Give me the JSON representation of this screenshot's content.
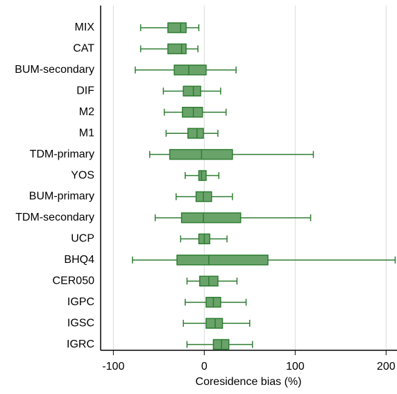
{
  "chart_data": {
    "type": "boxplot",
    "x_label": "Coresidence bias (%)",
    "categories": [
      "MIX",
      "CAT",
      "BUM-secondary",
      "DIF",
      "M2",
      "M1",
      "TDM-primary",
      "YOS",
      "BUM-primary",
      "TDM-secondary",
      "UCP",
      "BHQ4",
      "CER050",
      "IGPC",
      "IGSC",
      "IGRC"
    ],
    "min": [
      -70,
      -70,
      -76,
      -45,
      -44,
      -42,
      -60,
      -21,
      -31,
      -54,
      -26,
      -79,
      -19,
      -21,
      -23,
      -19
    ],
    "q1": [
      -40,
      -40,
      -33,
      -23,
      -24,
      -18,
      -38,
      -6,
      -9,
      -25,
      -6,
      -30,
      -5,
      2,
      2,
      10
    ],
    "median": [
      -26,
      -25,
      -17,
      -12,
      -12,
      -8,
      -3,
      -3,
      -1,
      -1,
      0,
      5,
      5,
      10,
      12,
      19
    ],
    "q3": [
      -20,
      -20,
      2,
      -4,
      -2,
      -1,
      31,
      2,
      8,
      40,
      6,
      70,
      15,
      18,
      20,
      27
    ],
    "max": [
      -6,
      -7,
      35,
      18,
      24,
      15,
      120,
      16,
      31,
      117,
      25,
      210,
      36,
      46,
      50,
      53
    ],
    "color": "#6aa36a",
    "edge_color": "#2e7d32",
    "xlim": [
      -114,
      212
    ],
    "xticks": [
      -100,
      0,
      100,
      200
    ],
    "grid": true
  }
}
